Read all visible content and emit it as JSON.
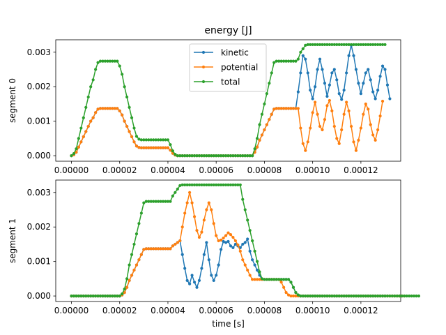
{
  "figure": {
    "title": "energy [J]"
  },
  "chart_data": [
    {
      "type": "line",
      "title": "energy [J]",
      "ylabel": "segment 0",
      "xlabel": "",
      "xlim": [
        -6.5e-06,
        0.0001365
      ],
      "ylim": [
        -0.00016,
        0.00336
      ],
      "x_ticks": [
        0,
        2e-05,
        4e-05,
        6e-05,
        8e-05,
        0.0001,
        0.00012
      ],
      "x_tick_labels": [
        "0.00000",
        "0.00002",
        "0.00004",
        "0.00006",
        "0.00008",
        "0.00010",
        "0.00012"
      ],
      "y_ticks": [
        0,
        0.001,
        0.002,
        0.003
      ],
      "y_tick_labels": [
        "0.000",
        "0.001",
        "0.002",
        "0.003"
      ],
      "legend": {
        "placement": "upper center",
        "entries": [
          "kinetic",
          "potential",
          "total"
        ]
      },
      "x_range": {
        "start": 0,
        "step": 1e-06,
        "count": 131
      },
      "series": [
        {
          "name": "kinetic",
          "color": "#1f77b4",
          "values": [
            0,
            3e-05,
            0.0001,
            0.00025,
            0.0004,
            0.00055,
            0.0007,
            0.00085,
            0.001,
            0.0011,
            0.00125,
            0.00135,
            0.00137,
            0.00137,
            0.00137,
            0.00137,
            0.00137,
            0.00137,
            0.00137,
            0.00137,
            0.0013,
            0.00118,
            0.001,
            0.00085,
            0.0007,
            0.00055,
            0.0004,
            0.00028,
            0.00024,
            0.00023,
            0.00023,
            0.00023,
            0.00023,
            0.00023,
            0.00023,
            0.00023,
            0.00023,
            0.00023,
            0.00023,
            0.00023,
            0.00023,
            0.00016,
            7e-05,
            2e-05,
            0,
            0,
            0,
            0,
            0,
            0,
            0,
            0,
            0,
            0,
            0,
            0,
            0,
            0,
            0,
            0,
            0,
            0,
            0,
            0,
            0,
            0,
            0,
            0,
            0,
            0,
            0,
            0,
            0,
            0,
            0,
            0,
            0.0001,
            0.00025,
            0.00045,
            0.0006,
            0.00075,
            0.0009,
            0.00105,
            0.0012,
            0.00135,
            0.00137,
            0.00137,
            0.00137,
            0.00137,
            0.00137,
            0.00137,
            0.00137,
            0.00137,
            0.00137,
            0.00185,
            0.0024,
            0.0029,
            0.0028,
            0.0024,
            0.0019,
            0.00165,
            0.002,
            0.0025,
            0.0028,
            0.0025,
            0.0021,
            0.00172,
            0.00205,
            0.0024,
            0.0025,
            0.0022,
            0.0018,
            0.00163,
            0.0019,
            0.0024,
            0.0029,
            0.0032,
            0.0029,
            0.0025,
            0.0021,
            0.0018,
            0.0021,
            0.0024,
            0.0025,
            0.0022,
            0.00185,
            0.00165,
            0.0019,
            0.0023,
            0.0026,
            0.0025,
            0.00205,
            0.00165
          ]
        },
        {
          "name": "potential",
          "color": "#ff7f0e",
          "values": [
            0,
            3e-05,
            0.0001,
            0.00025,
            0.0004,
            0.00055,
            0.0007,
            0.00085,
            0.001,
            0.0011,
            0.00125,
            0.00135,
            0.00137,
            0.00137,
            0.00137,
            0.00137,
            0.00137,
            0.00137,
            0.00137,
            0.00137,
            0.0013,
            0.00118,
            0.001,
            0.00085,
            0.0007,
            0.00055,
            0.0004,
            0.00028,
            0.00024,
            0.00023,
            0.00023,
            0.00023,
            0.00023,
            0.00023,
            0.00023,
            0.00023,
            0.00023,
            0.00023,
            0.00023,
            0.00023,
            0.00023,
            0.00016,
            7e-05,
            2e-05,
            0,
            0,
            0,
            0,
            0,
            0,
            0,
            0,
            0,
            0,
            0,
            0,
            0,
            0,
            0,
            0,
            0,
            0,
            0,
            0,
            0,
            0,
            0,
            0,
            0,
            0,
            0,
            0,
            0,
            0,
            0,
            0,
            0.0001,
            0.00025,
            0.00045,
            0.0006,
            0.00075,
            0.0009,
            0.00105,
            0.0012,
            0.00135,
            0.00137,
            0.00137,
            0.00137,
            0.00137,
            0.00137,
            0.00137,
            0.00137,
            0.00137,
            0.00137,
            0.00137,
            0.0008,
            0.00035,
            0.00015,
            0.0004,
            0.0008,
            0.00125,
            0.00155,
            0.0012,
            0.00085,
            0.00075,
            0.00105,
            0.00145,
            0.0016,
            0.0013,
            0.00085,
            0.0005,
            0.00035,
            0.00075,
            0.0012,
            0.00155,
            0.0013,
            0.00085,
            0.0004,
            0.00015,
            0.00045,
            0.0008,
            0.0012,
            0.0015,
            0.00135,
            0.0009,
            0.0006,
            0.00045,
            0.00075,
            0.00115,
            0.00158
          ]
        },
        {
          "name": "total",
          "color": "#2ca02c",
          "values": [
            0,
            6e-05,
            0.0002,
            0.0005,
            0.0008,
            0.0011,
            0.0014,
            0.0017,
            0.002,
            0.0022,
            0.0025,
            0.0027,
            0.00274,
            0.00274,
            0.00274,
            0.00274,
            0.00274,
            0.00274,
            0.00274,
            0.00274,
            0.0026,
            0.00236,
            0.002,
            0.0017,
            0.0014,
            0.0011,
            0.0008,
            0.00056,
            0.00048,
            0.00046,
            0.00046,
            0.00046,
            0.00046,
            0.00046,
            0.00046,
            0.00046,
            0.00046,
            0.00046,
            0.00046,
            0.00046,
            0.00046,
            0.00032,
            0.00014,
            4e-05,
            0,
            0,
            0,
            0,
            0,
            0,
            0,
            0,
            0,
            0,
            0,
            0,
            0,
            0,
            0,
            0,
            0,
            0,
            0,
            0,
            0,
            0,
            0,
            0,
            0,
            0,
            0,
            0,
            0,
            0,
            0,
            0,
            0.0002,
            0.0005,
            0.0009,
            0.0012,
            0.0015,
            0.0018,
            0.0021,
            0.0024,
            0.0027,
            0.00274,
            0.00274,
            0.00274,
            0.00274,
            0.00274,
            0.00274,
            0.00274,
            0.00274,
            0.00274,
            0.0028,
            0.003,
            0.0031,
            0.0032,
            0.00322,
            0.00322,
            0.00322,
            0.00322,
            0.00322,
            0.00322,
            0.00322,
            0.00322,
            0.00322,
            0.00322,
            0.00322,
            0.00322,
            0.00322,
            0.00322,
            0.00322,
            0.00322,
            0.00322,
            0.00322,
            0.00322,
            0.00322,
            0.00322,
            0.00322,
            0.00322,
            0.00322,
            0.00322,
            0.00322,
            0.00322,
            0.00322,
            0.00322,
            0.00322,
            0.00322,
            0.00322,
            0.00322
          ]
        }
      ]
    },
    {
      "type": "line",
      "title": "",
      "ylabel": "segment 1",
      "xlabel": "time [s]",
      "xlim": [
        -6.5e-06,
        0.0001365
      ],
      "ylim": [
        -0.00016,
        0.00336
      ],
      "x_ticks": [
        0,
        2e-05,
        4e-05,
        6e-05,
        8e-05,
        0.0001,
        0.00012
      ],
      "x_tick_labels": [
        "0.00000",
        "0.00002",
        "0.00004",
        "0.00006",
        "0.00008",
        "0.00010",
        "0.00012"
      ],
      "y_ticks": [
        0,
        0.001,
        0.002,
        0.003
      ],
      "y_tick_labels": [
        "0.000",
        "0.001",
        "0.002",
        "0.003"
      ],
      "x_range": {
        "start": 0,
        "step": 1e-06,
        "count": 131
      },
      "series": [
        {
          "name": "kinetic",
          "color": "#1f77b4",
          "values": [
            0,
            0,
            0,
            0,
            0,
            0,
            0,
            0,
            0,
            0,
            0,
            0,
            0,
            0,
            0,
            0,
            0,
            0,
            0,
            0,
            0,
            3e-05,
            0.0001,
            0.00025,
            0.00045,
            0.0006,
            0.00075,
            0.0009,
            0.00105,
            0.0012,
            0.00135,
            0.00137,
            0.00137,
            0.00137,
            0.00137,
            0.00137,
            0.00137,
            0.00137,
            0.00137,
            0.00137,
            0.00137,
            0.00137,
            0.00145,
            0.0015,
            0.00155,
            0.0016,
            0.0012,
            0.0008,
            0.00045,
            0.00035,
            0.0006,
            0.0004,
            0.00025,
            0.00045,
            0.0008,
            0.0012,
            0.00155,
            0.00105,
            0.0006,
            0.00045,
            0.0006,
            0.0009,
            0.00135,
            0.00158,
            0.00155,
            0.00158,
            0.00145,
            0.0014,
            0.0015,
            0.00145,
            0.0014,
            0.0015,
            0.00155,
            0.00165,
            0.0013,
            0.00105,
            0.0009,
            0.00075,
            0.0006,
            0.00048,
            0.00048,
            0.00048,
            0.00048,
            0.00048,
            0.00048,
            0.00048,
            0.00048,
            0.00048,
            0.00048,
            0.00048,
            0.00048,
            0.0004,
            0.00025,
            0.0001,
            3e-05,
            0,
            0,
            0,
            0,
            0,
            0,
            0,
            0,
            0,
            0,
            0,
            0,
            0,
            0,
            0,
            0,
            0,
            0,
            0,
            0,
            0,
            0,
            0,
            0,
            0,
            0,
            0,
            0,
            0,
            0,
            0,
            0,
            0,
            0,
            0,
            0
          ]
        },
        {
          "name": "potential",
          "color": "#ff7f0e",
          "values": [
            0,
            0,
            0,
            0,
            0,
            0,
            0,
            0,
            0,
            0,
            0,
            0,
            0,
            0,
            0,
            0,
            0,
            0,
            0,
            0,
            0,
            3e-05,
            0.0001,
            0.00025,
            0.00045,
            0.0006,
            0.00075,
            0.0009,
            0.00105,
            0.0012,
            0.00135,
            0.00137,
            0.00137,
            0.00137,
            0.00137,
            0.00137,
            0.00137,
            0.00137,
            0.00137,
            0.00137,
            0.00137,
            0.00137,
            0.00145,
            0.0015,
            0.00155,
            0.0016,
            0.002,
            0.0024,
            0.0027,
            0.003,
            0.0027,
            0.0023,
            0.0019,
            0.0017,
            0.00185,
            0.0022,
            0.0025,
            0.0027,
            0.0025,
            0.0021,
            0.00175,
            0.0016,
            0.00162,
            0.00168,
            0.00175,
            0.00183,
            0.00178,
            0.0017,
            0.0016,
            0.00148,
            0.0013,
            0.00105,
            0.0009,
            0.00075,
            0.0006,
            0.00048,
            0.00048,
            0.00048,
            0.00048,
            0.00048,
            0.00048,
            0.00048,
            0.00048,
            0.00048,
            0.00048,
            0.00048,
            0.00048,
            0.0004,
            0.00025,
            0.0001,
            3e-05,
            0,
            0,
            0,
            0,
            0,
            0,
            0,
            0,
            0,
            0,
            0,
            0,
            0,
            0,
            0,
            0,
            0,
            0,
            0,
            0,
            0,
            0,
            0,
            0,
            0,
            0,
            0,
            0,
            0,
            0,
            0,
            0,
            0,
            0,
            0,
            0,
            0,
            0,
            0,
            0,
            0,
            0,
            0,
            0,
            0,
            0,
            0,
            0
          ]
        },
        {
          "name": "total",
          "color": "#2ca02c",
          "values": [
            0,
            0,
            0,
            0,
            0,
            0,
            0,
            0,
            0,
            0,
            0,
            0,
            0,
            0,
            0,
            0,
            0,
            0,
            0,
            0,
            0,
            6e-05,
            0.0002,
            0.0005,
            0.0009,
            0.0012,
            0.0015,
            0.0018,
            0.0021,
            0.0024,
            0.0027,
            0.00274,
            0.00274,
            0.00274,
            0.00274,
            0.00274,
            0.00274,
            0.00274,
            0.00274,
            0.00274,
            0.00274,
            0.00274,
            0.0029,
            0.003,
            0.0031,
            0.0032,
            0.00322,
            0.00322,
            0.00322,
            0.00322,
            0.00322,
            0.00322,
            0.00322,
            0.00322,
            0.00322,
            0.00322,
            0.00322,
            0.00322,
            0.00322,
            0.00322,
            0.00322,
            0.00322,
            0.00322,
            0.00322,
            0.00322,
            0.00322,
            0.00322,
            0.00322,
            0.00322,
            0.00322,
            0.00322,
            0.0028,
            0.0025,
            0.0022,
            0.0019,
            0.0016,
            0.0013,
            0.001,
            0.0007,
            0.0005,
            0.00048,
            0.00048,
            0.00048,
            0.00048,
            0.00048,
            0.00048,
            0.00048,
            0.00048,
            0.00048,
            0.00048,
            0.00048,
            0.0004,
            0.00025,
            0.0001,
            3e-05,
            0,
            0,
            0,
            0,
            0,
            0,
            0,
            0,
            0,
            0,
            0,
            0,
            0,
            0,
            0,
            0,
            0,
            0,
            0,
            0,
            0,
            0,
            0,
            0,
            0,
            0,
            0,
            0,
            0,
            0,
            0,
            0,
            0,
            0,
            0,
            0,
            0,
            0,
            0,
            0,
            0,
            0,
            0,
            0,
            0,
            0,
            0,
            0,
            0,
            0
          ]
        }
      ]
    }
  ]
}
